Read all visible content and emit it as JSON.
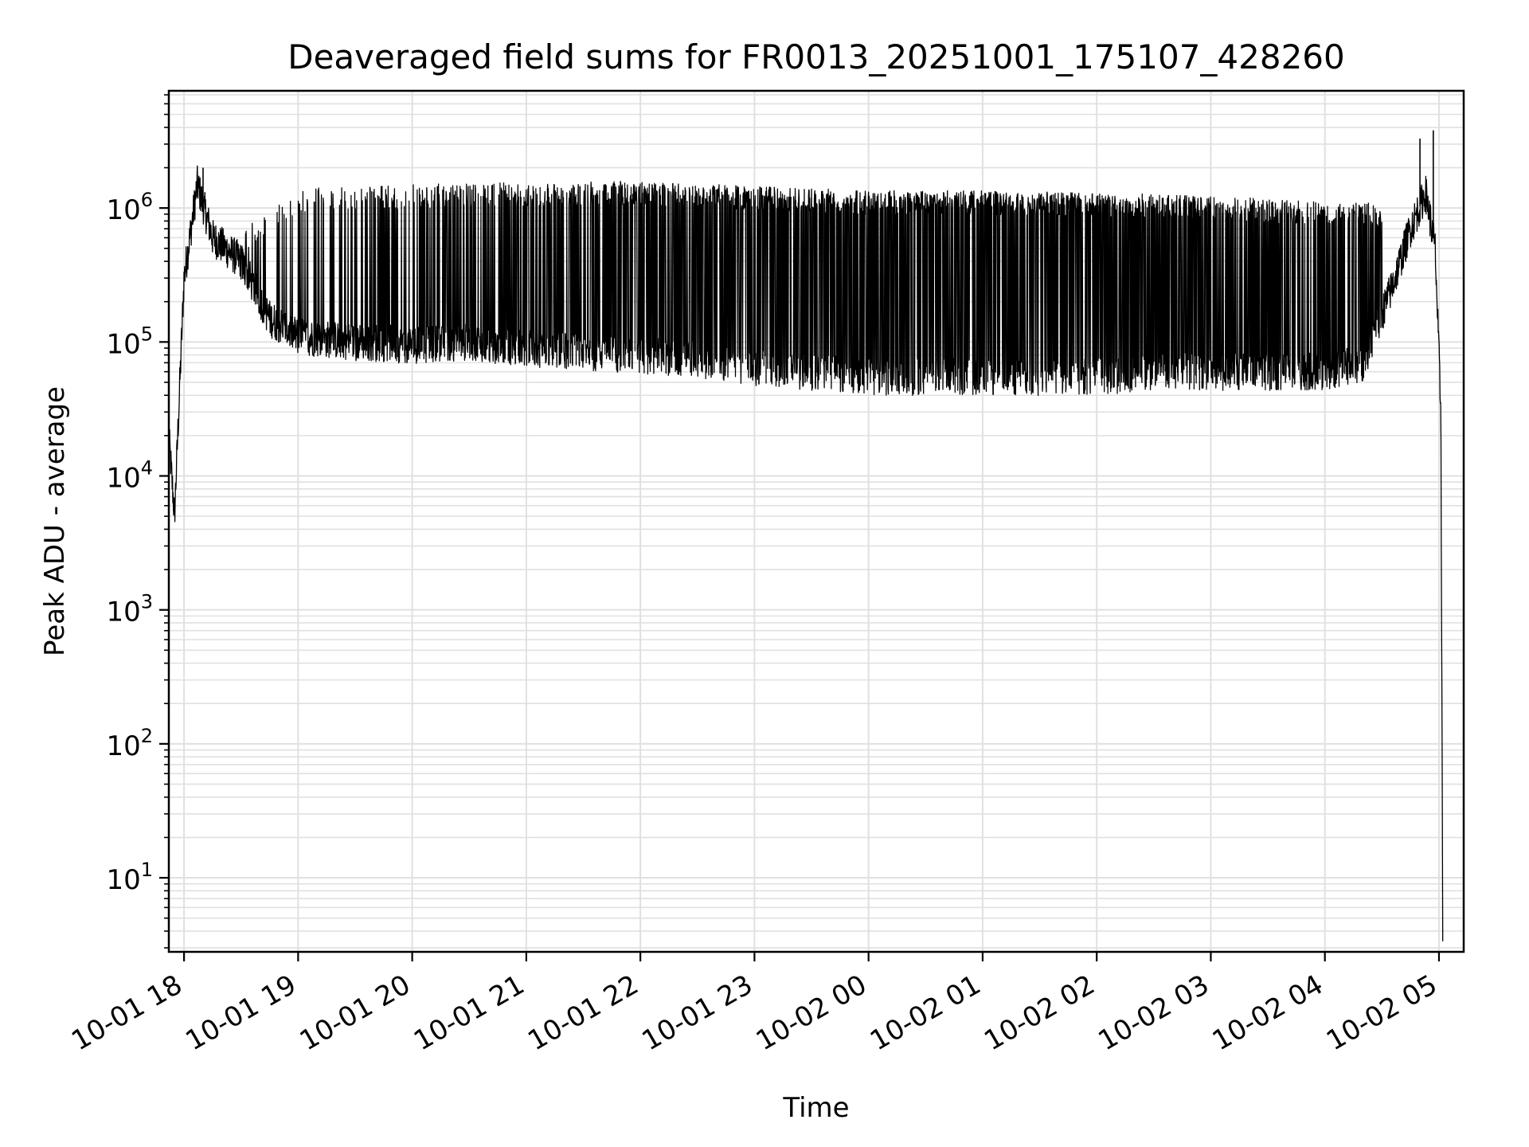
{
  "chart_data": {
    "type": "line",
    "title": "Deaveraged field sums for FR0013_20251001_175107_428260",
    "xlabel": "Time",
    "ylabel": "Peak ADU - average",
    "y_scale": "log",
    "grid": true,
    "line_color": "#000000",
    "grid_color": "#e0e0e0",
    "xlim": [
      "2025-10-01 17:52",
      "2025-10-02 05:13"
    ],
    "ylim": [
      2.8,
      7500000
    ],
    "x_ticks": [
      {
        "t": "2025-10-01 18:00",
        "label": "10-01 18"
      },
      {
        "t": "2025-10-01 19:00",
        "label": "10-01 19"
      },
      {
        "t": "2025-10-01 20:00",
        "label": "10-01 20"
      },
      {
        "t": "2025-10-01 21:00",
        "label": "10-01 21"
      },
      {
        "t": "2025-10-01 22:00",
        "label": "10-01 22"
      },
      {
        "t": "2025-10-01 23:00",
        "label": "10-01 23"
      },
      {
        "t": "2025-10-02 00:00",
        "label": "10-02 00"
      },
      {
        "t": "2025-10-02 01:00",
        "label": "10-02 01"
      },
      {
        "t": "2025-10-02 02:00",
        "label": "10-02 02"
      },
      {
        "t": "2025-10-02 03:00",
        "label": "10-02 03"
      },
      {
        "t": "2025-10-02 04:00",
        "label": "10-02 04"
      },
      {
        "t": "2025-10-02 05:00",
        "label": "10-02 05"
      }
    ],
    "y_ticks": [
      {
        "value": 10,
        "base": "10",
        "exp": "1"
      },
      {
        "value": 100,
        "base": "10",
        "exp": "2"
      },
      {
        "value": 1000,
        "base": "10",
        "exp": "3"
      },
      {
        "value": 10000,
        "base": "10",
        "exp": "4"
      },
      {
        "value": 100000,
        "base": "10",
        "exp": "5"
      },
      {
        "value": 1000000,
        "base": "10",
        "exp": "6"
      }
    ],
    "series": [
      {
        "baseline_envelope": [
          {
            "t": "2025-10-01 17:52",
            "y": 20000
          },
          {
            "t": "2025-10-01 17:55",
            "y": 5000
          },
          {
            "t": "2025-10-01 18:00",
            "y": 300000
          },
          {
            "t": "2025-10-01 18:07",
            "y": 1500000
          },
          {
            "t": "2025-10-01 18:15",
            "y": 600000
          },
          {
            "t": "2025-10-01 18:30",
            "y": 400000
          },
          {
            "t": "2025-10-01 18:45",
            "y": 150000
          },
          {
            "t": "2025-10-01 19:00",
            "y": 110000
          },
          {
            "t": "2025-10-01 19:30",
            "y": 100000
          },
          {
            "t": "2025-10-01 20:00",
            "y": 95000
          },
          {
            "t": "2025-10-01 20:30",
            "y": 100000
          },
          {
            "t": "2025-10-01 21:00",
            "y": 90000
          },
          {
            "t": "2025-10-01 21:30",
            "y": 85000
          },
          {
            "t": "2025-10-01 22:00",
            "y": 80000
          },
          {
            "t": "2025-10-01 22:30",
            "y": 75000
          },
          {
            "t": "2025-10-01 23:00",
            "y": 65000
          },
          {
            "t": "2025-10-01 23:30",
            "y": 60000
          },
          {
            "t": "2025-10-02 00:00",
            "y": 55000
          },
          {
            "t": "2025-10-02 00:30",
            "y": 55000
          },
          {
            "t": "2025-10-02 01:00",
            "y": 55000
          },
          {
            "t": "2025-10-02 01:30",
            "y": 55000
          },
          {
            "t": "2025-10-02 02:00",
            "y": 55000
          },
          {
            "t": "2025-10-02 02:30",
            "y": 60000
          },
          {
            "t": "2025-10-02 03:00",
            "y": 60000
          },
          {
            "t": "2025-10-02 03:30",
            "y": 60000
          },
          {
            "t": "2025-10-02 04:00",
            "y": 60000
          },
          {
            "t": "2025-10-02 04:20",
            "y": 70000
          },
          {
            "t": "2025-10-02 04:35",
            "y": 250000
          },
          {
            "t": "2025-10-02 04:45",
            "y": 700000
          },
          {
            "t": "2025-10-02 04:53",
            "y": 1300000
          },
          {
            "t": "2025-10-02 04:58",
            "y": 500000
          },
          {
            "t": "2025-10-02 05:01",
            "y": 30000
          },
          {
            "t": "2025-10-02 05:02",
            "y": 3
          }
        ],
        "spike_envelope": [
          {
            "t": "2025-10-01 18:30",
            "y": 700000
          },
          {
            "t": "2025-10-01 19:00",
            "y": 1400000
          },
          {
            "t": "2025-10-01 20:00",
            "y": 1500000
          },
          {
            "t": "2025-10-01 21:00",
            "y": 1550000
          },
          {
            "t": "2025-10-01 22:00",
            "y": 1600000
          },
          {
            "t": "2025-10-01 23:00",
            "y": 1450000
          },
          {
            "t": "2025-10-02 00:00",
            "y": 1350000
          },
          {
            "t": "2025-10-02 01:00",
            "y": 1350000
          },
          {
            "t": "2025-10-02 02:00",
            "y": 1300000
          },
          {
            "t": "2025-10-02 03:00",
            "y": 1250000
          },
          {
            "t": "2025-10-02 04:00",
            "y": 1100000
          },
          {
            "t": "2025-10-02 04:30",
            "y": 1100000
          }
        ],
        "notable_peaks": [
          {
            "t": "2025-10-01 18:10",
            "y": 2000000
          },
          {
            "t": "2025-10-02 04:50",
            "y": 3300000
          },
          {
            "t": "2025-10-02 04:57",
            "y": 3800000
          }
        ]
      }
    ]
  }
}
